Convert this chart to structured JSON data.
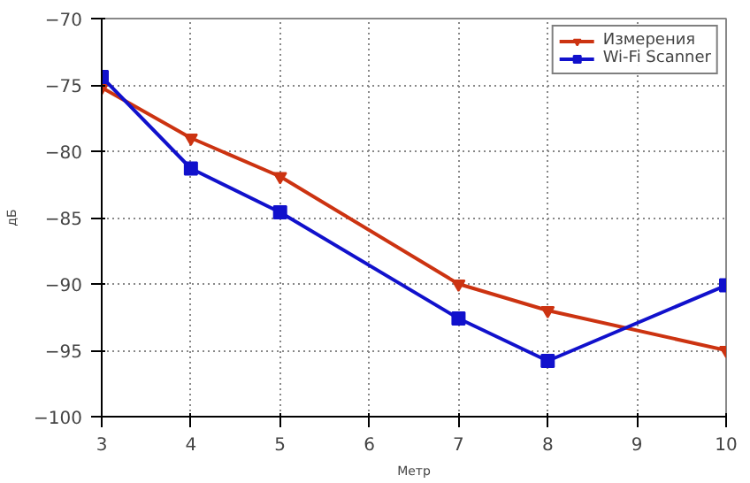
{
  "chart_data": {
    "type": "line",
    "xlabel": "Метр",
    "ylabel": "дБ",
    "x": [
      3,
      4,
      5,
      7,
      8,
      10
    ],
    "series": [
      {
        "name": "Измерения",
        "color": "#cc3311",
        "marker": "triangle",
        "values": [
          -75.2,
          -79,
          -81.9,
          -90,
          -92,
          -95
        ]
      },
      {
        "name": "Wi-Fi Scanner",
        "color": "#1111cc",
        "marker": "square",
        "values": [
          -74.4,
          -81.3,
          -84.6,
          -92.6,
          -95.8,
          -90.1
        ]
      }
    ],
    "xlim": [
      3,
      10
    ],
    "ylim": [
      -100,
      -70
    ],
    "xticks": [
      3,
      4,
      5,
      6,
      7,
      8,
      9,
      10
    ],
    "yticks": [
      -100,
      -95,
      -90,
      -85,
      -80,
      -75,
      -70
    ],
    "grid": true,
    "legend": "top right",
    "line_style": "solid"
  }
}
